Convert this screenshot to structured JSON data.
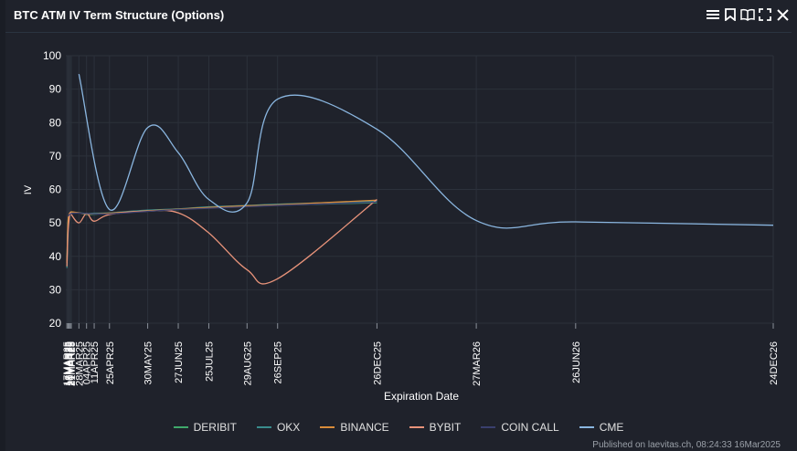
{
  "header": {
    "title": "BTC ATM IV Term Structure (Options)",
    "icons": [
      "menu-icon",
      "bookmark-icon",
      "book-icon",
      "fullscreen-icon",
      "close-icon"
    ]
  },
  "colors": {
    "background": "#1f222b",
    "grid": "#2c313b",
    "axis_text": "#ffffff",
    "DERIBIT": "#3fa96b",
    "OKX": "#3a8c8c",
    "BINANCE": "#d98c3a",
    "BYBIT": "#e8937a",
    "COIN CALL": "#3a3f6e",
    "CME": "#8ab6e0"
  },
  "chart_data": {
    "type": "line",
    "title": "BTC ATM IV Term Structure (Options)",
    "xlabel": "Expiration Date",
    "ylabel": "IV",
    "ylim": [
      20,
      100
    ],
    "yticks": [
      20,
      30,
      40,
      50,
      60,
      70,
      80,
      90,
      100
    ],
    "x_start": "2025-03-16",
    "x_end": "2026-12-24",
    "xticks": [
      {
        "label": "17MAR25",
        "date": "2025-03-17"
      },
      {
        "label": "18MAR25",
        "date": "2025-03-18"
      },
      {
        "label": "19MAR25",
        "date": "2025-03-19"
      },
      {
        "label": "20MAR25",
        "date": "2025-03-20"
      },
      {
        "label": "21MAR25",
        "date": "2025-03-21"
      },
      {
        "label": "28MAR25",
        "date": "2025-03-28"
      },
      {
        "label": "04APR25",
        "date": "2025-04-04"
      },
      {
        "label": "11APR25",
        "date": "2025-04-11"
      },
      {
        "label": "25APR25",
        "date": "2025-04-25"
      },
      {
        "label": "30MAY25",
        "date": "2025-05-30"
      },
      {
        "label": "27JUN25",
        "date": "2025-06-27"
      },
      {
        "label": "25JUL25",
        "date": "2025-07-25"
      },
      {
        "label": "29AUG25",
        "date": "2025-08-29"
      },
      {
        "label": "26SEP25",
        "date": "2025-09-26"
      },
      {
        "label": "26DEC25",
        "date": "2025-12-26"
      },
      {
        "label": "27MAR26",
        "date": "2026-03-27"
      },
      {
        "label": "26JUN26",
        "date": "2026-06-26"
      },
      {
        "label": "24DEC26",
        "date": "2026-12-24"
      }
    ],
    "series": [
      {
        "name": "DERIBIT",
        "points": [
          [
            "2025-03-17",
            38
          ],
          [
            "2025-03-18",
            50
          ],
          [
            "2025-03-19",
            52
          ],
          [
            "2025-03-20",
            52.5
          ],
          [
            "2025-03-21",
            53
          ],
          [
            "2025-03-28",
            53
          ],
          [
            "2025-04-04",
            52.5
          ],
          [
            "2025-04-11",
            52.6
          ],
          [
            "2025-04-25",
            52.8
          ],
          [
            "2025-05-30",
            53.5
          ],
          [
            "2025-06-27",
            54
          ],
          [
            "2025-07-25",
            54.5
          ],
          [
            "2025-08-29",
            55
          ],
          [
            "2025-09-26",
            55.3
          ],
          [
            "2025-12-26",
            56
          ]
        ]
      },
      {
        "name": "OKX",
        "points": [
          [
            "2025-03-17",
            36.5
          ],
          [
            "2025-03-18",
            49
          ],
          [
            "2025-03-19",
            52
          ],
          [
            "2025-03-20",
            53
          ],
          [
            "2025-03-21",
            53.2
          ],
          [
            "2025-03-28",
            53
          ],
          [
            "2025-04-04",
            52.8
          ],
          [
            "2025-04-11",
            52.9
          ],
          [
            "2025-04-25",
            53
          ],
          [
            "2025-05-30",
            53.8
          ],
          [
            "2025-06-27",
            54.2
          ],
          [
            "2025-07-25",
            54.8
          ],
          [
            "2025-08-29",
            55.2
          ],
          [
            "2025-09-26",
            55.6
          ],
          [
            "2025-12-26",
            56.5
          ]
        ]
      },
      {
        "name": "BINANCE",
        "points": [
          [
            "2025-03-17",
            38
          ],
          [
            "2025-03-18",
            50
          ],
          [
            "2025-03-19",
            52.5
          ],
          [
            "2025-03-20",
            53
          ],
          [
            "2025-03-21",
            53.3
          ],
          [
            "2025-03-28",
            53
          ],
          [
            "2025-04-04",
            52.6
          ],
          [
            "2025-04-11",
            52.7
          ],
          [
            "2025-04-25",
            52.9
          ],
          [
            "2025-05-30",
            53.6
          ],
          [
            "2025-06-27",
            54.1
          ],
          [
            "2025-07-25",
            54.6
          ],
          [
            "2025-08-29",
            55.1
          ],
          [
            "2025-09-26",
            55.4
          ],
          [
            "2025-12-26",
            56.8
          ]
        ]
      },
      {
        "name": "BYBIT",
        "points": [
          [
            "2025-03-17",
            37
          ],
          [
            "2025-03-18",
            47
          ],
          [
            "2025-03-19",
            51
          ],
          [
            "2025-03-20",
            53
          ],
          [
            "2025-03-21",
            52.5
          ],
          [
            "2025-03-28",
            50
          ],
          [
            "2025-04-04",
            52.8
          ],
          [
            "2025-04-11",
            50.5
          ],
          [
            "2025-04-25",
            52.5
          ],
          [
            "2025-05-30",
            53.5
          ],
          [
            "2025-06-27",
            53
          ],
          [
            "2025-07-25",
            47
          ],
          [
            "2025-08-29",
            36
          ],
          [
            "2025-09-26",
            33.3
          ],
          [
            "2025-12-26",
            57
          ]
        ]
      },
      {
        "name": "COIN CALL",
        "points": [
          [
            "2025-03-18",
            52
          ],
          [
            "2025-03-21",
            52.8
          ],
          [
            "2025-03-28",
            52.9
          ],
          [
            "2025-04-25",
            52.7
          ],
          [
            "2025-06-27",
            54
          ],
          [
            "2025-09-26",
            55.2
          ],
          [
            "2025-12-26",
            56.2
          ]
        ]
      },
      {
        "name": "CME",
        "points": [
          [
            "2025-03-28",
            94.5
          ],
          [
            "2025-04-25",
            54
          ],
          [
            "2025-05-30",
            78.5
          ],
          [
            "2025-06-27",
            71
          ],
          [
            "2025-07-25",
            57
          ],
          [
            "2025-08-29",
            56
          ],
          [
            "2025-09-26",
            87
          ],
          [
            "2025-12-26",
            78
          ],
          [
            "2026-03-27",
            50.7
          ],
          [
            "2026-06-26",
            50.3
          ],
          [
            "2026-12-24",
            49.3
          ]
        ]
      }
    ]
  },
  "legend": [
    "DERIBIT",
    "OKX",
    "BINANCE",
    "BYBIT",
    "COIN CALL",
    "CME"
  ],
  "footer": "Published on laevitas.ch, 08:24:33 16Mar2025"
}
